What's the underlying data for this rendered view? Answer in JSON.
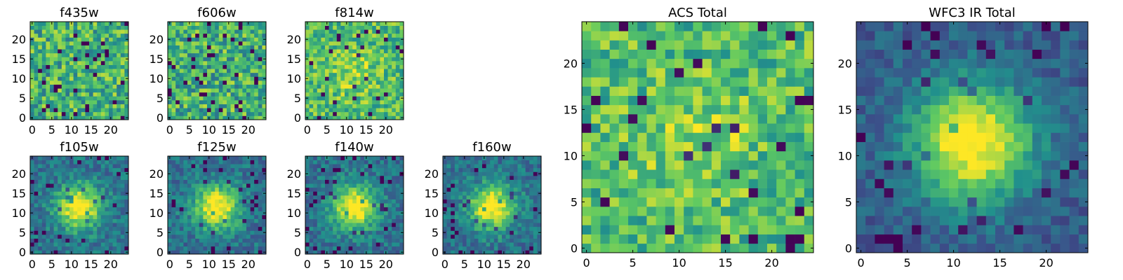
{
  "figure": {
    "colormap": "viridis",
    "colormap_stops": [
      "#440154",
      "#3b528b",
      "#21918c",
      "#5ec962",
      "#fde725"
    ],
    "axis_color": "#000000",
    "background": "#ffffff"
  },
  "chart_data": [
    {
      "type": "heatmap",
      "title": "f435w",
      "grid": false,
      "xlim": [
        0,
        25
      ],
      "ylim": [
        0,
        25
      ],
      "xticks": [
        0,
        5,
        10,
        15,
        20
      ],
      "yticks": [
        0,
        5,
        10,
        15,
        20
      ],
      "pattern": "noise",
      "seed": 11
    },
    {
      "type": "heatmap",
      "title": "f606w",
      "grid": false,
      "xlim": [
        0,
        25
      ],
      "ylim": [
        0,
        25
      ],
      "xticks": [
        0,
        5,
        10,
        15,
        20
      ],
      "yticks": [
        0,
        5,
        10,
        15,
        20
      ],
      "pattern": "noise",
      "seed": 23
    },
    {
      "type": "heatmap",
      "title": "f814w",
      "grid": false,
      "xlim": [
        0,
        25
      ],
      "ylim": [
        0,
        25
      ],
      "xticks": [
        0,
        5,
        10,
        15,
        20
      ],
      "yticks": [
        0,
        5,
        10,
        15,
        20
      ],
      "pattern": "noise_weak_source",
      "seed": 37
    },
    {
      "type": "heatmap",
      "title": "f105w",
      "grid": false,
      "xlim": [
        0,
        25
      ],
      "ylim": [
        0,
        25
      ],
      "xticks": [
        0,
        5,
        10,
        15,
        20
      ],
      "yticks": [
        0,
        5,
        10,
        15,
        20
      ],
      "pattern": "source",
      "seed": 41
    },
    {
      "type": "heatmap",
      "title": "f125w",
      "grid": false,
      "xlim": [
        0,
        25
      ],
      "ylim": [
        0,
        25
      ],
      "xticks": [
        0,
        5,
        10,
        15,
        20
      ],
      "yticks": [
        0,
        5,
        10,
        15,
        20
      ],
      "pattern": "source",
      "seed": 53
    },
    {
      "type": "heatmap",
      "title": "f140w",
      "grid": false,
      "xlim": [
        0,
        25
      ],
      "ylim": [
        0,
        25
      ],
      "xticks": [
        0,
        5,
        10,
        15,
        20
      ],
      "yticks": [
        0,
        5,
        10,
        15,
        20
      ],
      "pattern": "source",
      "seed": 67
    },
    {
      "type": "heatmap",
      "title": "f160w",
      "grid": false,
      "xlim": [
        0,
        25
      ],
      "ylim": [
        0,
        25
      ],
      "xticks": [
        0,
        5,
        10,
        15,
        20
      ],
      "yticks": [
        0,
        5,
        10,
        15,
        20
      ],
      "pattern": "source",
      "seed": 79
    },
    {
      "type": "heatmap",
      "title": "ACS Total",
      "grid": false,
      "xlim": [
        0,
        25
      ],
      "ylim": [
        0,
        25
      ],
      "xticks": [
        0,
        5,
        10,
        15,
        20
      ],
      "yticks": [
        0,
        5,
        10,
        15,
        20
      ],
      "pattern": "noise_weak_source",
      "seed": 83
    },
    {
      "type": "heatmap",
      "title": "WFC3 IR Total",
      "grid": false,
      "xlim": [
        0,
        25
      ],
      "ylim": [
        0,
        25
      ],
      "xticks": [
        0,
        5,
        10,
        15,
        20
      ],
      "yticks": [
        0,
        5,
        10,
        15,
        20
      ],
      "pattern": "source_strong",
      "seed": 97
    }
  ]
}
